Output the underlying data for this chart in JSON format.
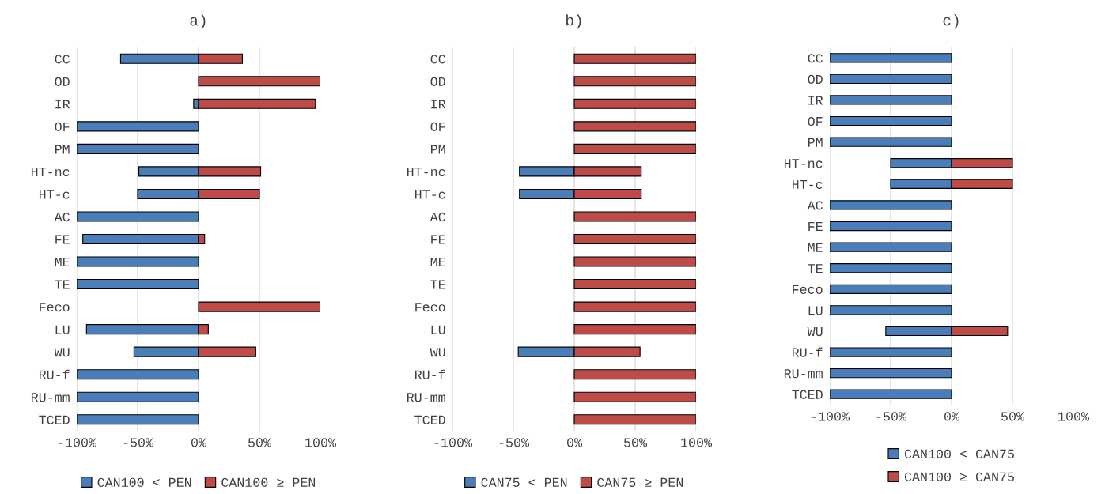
{
  "chart_data": [
    {
      "type": "bar",
      "orientation": "horizontal",
      "title": "a)",
      "categories": [
        "CC",
        "OD",
        "IR",
        "OF",
        "PM",
        "HT-nc",
        "HT-c",
        "AC",
        "FE",
        "ME",
        "TE",
        "Feco",
        "LU",
        "WU",
        "RU-f",
        "RU-mm",
        "TCED"
      ],
      "series": [
        {
          "name": "CAN100 < PEN",
          "color": "#4a7ebb",
          "values": [
            -64,
            null,
            -4,
            -100,
            -100,
            -49,
            -50,
            -100,
            -95,
            -100,
            -100,
            null,
            -92,
            -53,
            -100,
            -100,
            -100
          ]
        },
        {
          "name": "CAN100 ≥ PEN",
          "color": "#be4b48",
          "values": [
            36,
            100,
            96,
            null,
            null,
            51,
            50,
            null,
            5,
            null,
            null,
            100,
            8,
            47,
            null,
            null,
            null
          ]
        }
      ],
      "xlim": [
        -100,
        100
      ],
      "xticks": [
        {
          "value": -100,
          "label": "-100%"
        },
        {
          "value": -50,
          "label": "-50%"
        },
        {
          "value": 0,
          "label": "0%"
        },
        {
          "value": 50,
          "label": "50%"
        },
        {
          "value": 100,
          "label": "100%"
        }
      ],
      "grid": "x",
      "legend": "bottom"
    },
    {
      "type": "bar",
      "orientation": "horizontal",
      "title": "b)",
      "categories": [
        "CC",
        "OD",
        "IR",
        "OF",
        "PM",
        "HT-nc",
        "HT-c",
        "AC",
        "FE",
        "ME",
        "TE",
        "Feco",
        "LU",
        "WU",
        "RU-f",
        "RU-mm",
        "TCED"
      ],
      "series": [
        {
          "name": "CAN75 < PEN",
          "color": "#4a7ebb",
          "values": [
            null,
            null,
            null,
            null,
            null,
            -45,
            -45,
            null,
            null,
            null,
            null,
            null,
            null,
            -46,
            null,
            null,
            null
          ]
        },
        {
          "name": "CAN75 ≥ PEN",
          "color": "#be4b48",
          "values": [
            100,
            100,
            100,
            100,
            100,
            55,
            55,
            100,
            100,
            100,
            100,
            100,
            100,
            54,
            100,
            100,
            100
          ]
        }
      ],
      "xlim": [
        -100,
        100
      ],
      "xticks": [
        {
          "value": -100,
          "label": "-100%"
        },
        {
          "value": -50,
          "label": "-50%"
        },
        {
          "value": 0,
          "label": "0%"
        },
        {
          "value": 50,
          "label": "50%"
        },
        {
          "value": 100,
          "label": "100%"
        }
      ],
      "grid": "x",
      "legend": "bottom"
    },
    {
      "type": "bar",
      "orientation": "horizontal",
      "title": "c)",
      "categories": [
        "CC",
        "OD",
        "IR",
        "OF",
        "PM",
        "HT-nc",
        "HT-c",
        "AC",
        "FE",
        "ME",
        "TE",
        "Feco",
        "LU",
        "WU",
        "RU-f",
        "RU-mm",
        "TCED"
      ],
      "series": [
        {
          "name": "CAN100 < CAN75",
          "color": "#4a7ebb",
          "values": [
            -100,
            -100,
            -100,
            -100,
            -100,
            -50,
            -50,
            -100,
            -100,
            -100,
            -100,
            -100,
            -100,
            -54,
            -100,
            -100,
            -100
          ]
        },
        {
          "name": "CAN100 ≥ CAN75",
          "color": "#be4b48",
          "values": [
            null,
            null,
            null,
            null,
            null,
            50,
            50,
            null,
            null,
            null,
            null,
            null,
            null,
            46,
            null,
            null,
            null
          ]
        }
      ],
      "xlim": [
        -100,
        100
      ],
      "xticks": [
        {
          "value": -100,
          "label": "-100%"
        },
        {
          "value": -50,
          "label": "-50%"
        },
        {
          "value": 0,
          "label": "0%"
        },
        {
          "value": 50,
          "label": "50%"
        },
        {
          "value": 100,
          "label": "100%"
        }
      ],
      "grid": "x",
      "legend": "bottom"
    }
  ]
}
